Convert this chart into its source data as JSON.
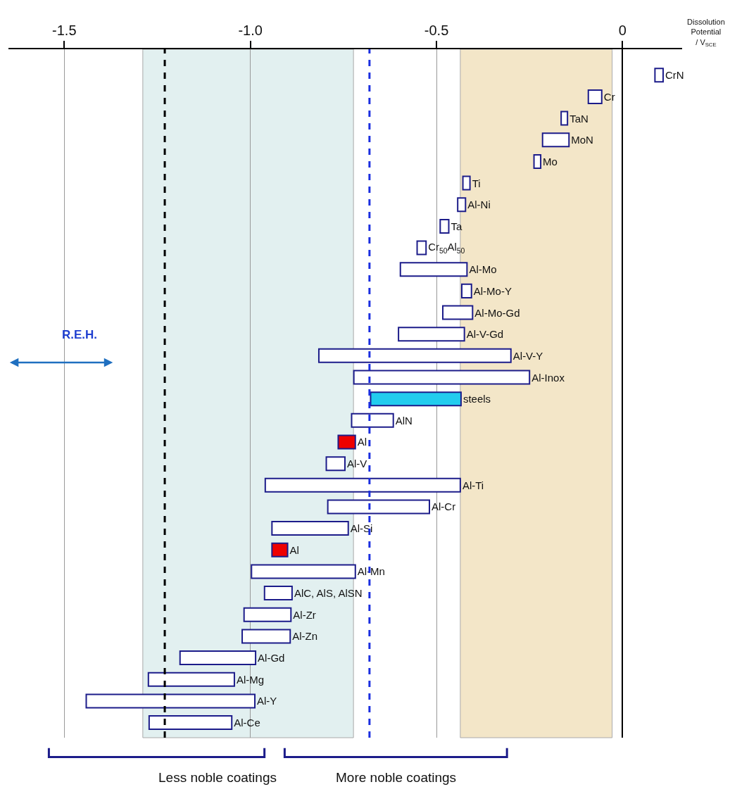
{
  "chart_data": {
    "type": "bar",
    "orientation": "horizontal",
    "xlabel": "Dissolution Potential / V$_{SCE}$",
    "categories": [
      "CrN",
      "Cr",
      "TaN",
      "MoN",
      "Mo",
      "Ti",
      "Al-Ni",
      "Ta",
      "Cr$_{50}$Al$_{50}$",
      "Al-Mo",
      "Al-Mo-Y",
      "Al-Mo-Gd",
      "Al-V-Gd",
      "Al-V-Y",
      "Al-Inox",
      "steels",
      "AlN",
      "Al",
      "Al-V",
      "Al-Ti",
      "Al-Cr",
      "Al-Si",
      "Al",
      "Al-Mn",
      "AlC, AlS, AlSN",
      "Al-Zr",
      "Al-Zn",
      "Al-Gd",
      "Al-Mg",
      "Al-Y",
      "Al-Ce"
    ],
    "base": [
      0.087,
      -0.092,
      -0.165,
      -0.215,
      -0.238,
      -0.429,
      -0.443,
      -0.49,
      -0.552,
      -0.597,
      -0.432,
      -0.483,
      -0.602,
      -0.816,
      -0.722,
      -0.677,
      -0.728,
      -0.764,
      -0.796,
      -0.96,
      -0.792,
      -0.942,
      -0.942,
      -0.997,
      -0.962,
      -1.017,
      -1.022,
      -1.189,
      -1.274,
      -1.441,
      -1.272
    ],
    "values": [
      0.022,
      0.036,
      0.017,
      0.071,
      0.018,
      0.019,
      0.021,
      0.023,
      0.024,
      0.179,
      0.026,
      0.08,
      0.177,
      0.516,
      0.472,
      0.243,
      0.112,
      0.046,
      0.05,
      0.524,
      0.273,
      0.205,
      0.042,
      0.279,
      0.074,
      0.126,
      0.129,
      0.203,
      0.231,
      0.453,
      0.222
    ],
    "colors": [
      "#ffffff",
      "#ffffff",
      "#ffffff",
      "#ffffff",
      "#ffffff",
      "#ffffff",
      "#ffffff",
      "#ffffff",
      "#ffffff",
      "#ffffff",
      "#ffffff",
      "#ffffff",
      "#ffffff",
      "#ffffff",
      "#ffffff",
      "#22ccee",
      "#ffffff",
      "#ee0000",
      "#ffffff",
      "#ffffff",
      "#ffffff",
      "#ffffff",
      "#ee0000",
      "#ffffff",
      "#ffffff",
      "#ffffff",
      "#ffffff",
      "#ffffff",
      "#ffffff",
      "#ffffff",
      "#ffffff"
    ],
    "xlim": [
      -1.65,
      0.16
    ],
    "xticks": [
      -1.5,
      {
        "value": -1.0,
        "label": "-1.0"
      },
      -0.5,
      0
    ],
    "grid": "x",
    "tick_labels": "x",
    "ref_lines": [
      {
        "axis": "x",
        "value": -1.23,
        "color": "#000000",
        "line_style": "dashed"
      },
      {
        "axis": "x",
        "value": -0.68,
        "color": "#1a2ee0",
        "line_style": "dashed"
      }
    ],
    "bands": [
      {
        "axis": "x",
        "from": -0.436,
        "to": -0.028,
        "color": "#f3e6c8"
      },
      {
        "axis": "x",
        "from": -1.289,
        "to": -0.723,
        "color": "#e2f0f0"
      }
    ],
    "annotations": [
      "R.E.H.",
      "Less noble coatings",
      "More noble coatings"
    ]
  }
}
